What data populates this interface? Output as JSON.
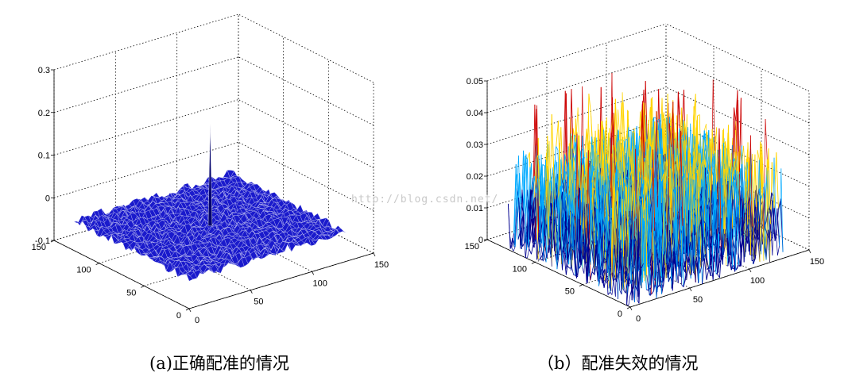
{
  "chart_data": [
    {
      "type": "surface",
      "caption": "(a)正确配准的情况",
      "x_ticks": [
        "0",
        "50",
        "100",
        "150"
      ],
      "y_ticks": [
        "0",
        "50",
        "100",
        "150"
      ],
      "z_ticks": [
        "-0.1",
        "0",
        "0.1",
        "0.2",
        "0.3"
      ],
      "xlim": [
        0,
        150
      ],
      "ylim": [
        0,
        150
      ],
      "zlim": [
        -0.1,
        0.3
      ],
      "grid": true,
      "surface_size": [
        128,
        128
      ],
      "baseline_z": -0.03,
      "noise_amplitude": 0.01,
      "peak": {
        "x": 64,
        "y": 64,
        "z": 0.21
      },
      "colors": {
        "surface": "#1a1acc",
        "mesh": "#ffffff"
      }
    },
    {
      "type": "surface",
      "caption": "（b）配准失效的情况",
      "x_ticks": [
        "0",
        "50",
        "100",
        "150"
      ],
      "y_ticks": [
        "0",
        "50",
        "100",
        "150"
      ],
      "z_ticks": [
        "0",
        "0.01",
        "0.02",
        "0.03",
        "0.04",
        "0.05"
      ],
      "xlim": [
        0,
        150
      ],
      "ylim": [
        0,
        150
      ],
      "zlim": [
        0,
        0.05
      ],
      "grid": true,
      "surface_size": [
        128,
        128
      ],
      "noise_range": [
        0,
        0.049
      ],
      "colors": {
        "low": "#00008f",
        "mid": "#00aaff",
        "high": "#ffd400",
        "max": "#cc0000"
      }
    }
  ],
  "watermark": "http://blog.csdn.net/"
}
